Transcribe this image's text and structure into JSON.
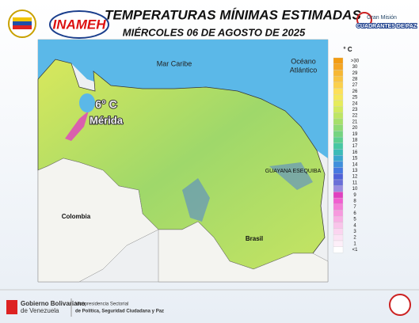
{
  "header": {
    "logo": "INAMEH",
    "title": "TEMPERATURAS MÍNIMAS ESTIMADAS",
    "subtitle": "MIÉRCOLES 06 DE AGOSTO DE 2025",
    "badge_small": "Gran Misión",
    "badge": "CUADRANTES DE PAZ"
  },
  "map": {
    "labels": {
      "sea": "Mar Caribe",
      "ocean": "Océano",
      "ocean2": "Atlántico",
      "colombia": "Colombia",
      "brasil": "Brasil",
      "esequiba": "GUAYANA ESEQUIBA",
      "min_temp": "6° C",
      "min_city": "Mérida"
    }
  },
  "legend": {
    "unit": "° C",
    "items": [
      {
        "label": ">30",
        "color": "#f39c12"
      },
      {
        "label": "30",
        "color": "#f5a623"
      },
      {
        "label": "29",
        "color": "#f7b733"
      },
      {
        "label": "28",
        "color": "#f9c440"
      },
      {
        "label": "27",
        "color": "#fbd04c"
      },
      {
        "label": "26",
        "color": "#fde05a"
      },
      {
        "label": "25",
        "color": "#f5e85a"
      },
      {
        "label": "24",
        "color": "#e6ec5c"
      },
      {
        "label": "23",
        "color": "#d2ea5e"
      },
      {
        "label": "22",
        "color": "#bde663"
      },
      {
        "label": "21",
        "color": "#a6e06a"
      },
      {
        "label": "20",
        "color": "#8fdb74"
      },
      {
        "label": "19",
        "color": "#74d480"
      },
      {
        "label": "18",
        "color": "#5ccf90"
      },
      {
        "label": "17",
        "color": "#47c7a3"
      },
      {
        "label": "16",
        "color": "#3bbbb8"
      },
      {
        "label": "15",
        "color": "#3aa6cf"
      },
      {
        "label": "14",
        "color": "#3f8fdc"
      },
      {
        "label": "13",
        "color": "#4678e0"
      },
      {
        "label": "12",
        "color": "#4f62d8"
      },
      {
        "label": "11",
        "color": "#6a6fd8"
      },
      {
        "label": "10",
        "color": "#9a8ce0"
      },
      {
        "label": "9",
        "color": "#e040c0"
      },
      {
        "label": "8",
        "color": "#f05fd0"
      },
      {
        "label": "7",
        "color": "#f47fd8"
      },
      {
        "label": "6",
        "color": "#f69ade"
      },
      {
        "label": "5",
        "color": "#f8b0e4"
      },
      {
        "label": "4",
        "color": "#f9c4ea"
      },
      {
        "label": "3",
        "color": "#fbd5f0"
      },
      {
        "label": "2",
        "color": "#fce3f5"
      },
      {
        "label": "1",
        "color": "#fdeff9"
      },
      {
        "label": "<1",
        "color": "#ffffff"
      }
    ]
  },
  "footer": {
    "gov1": "Gobierno Bolivariano",
    "gov2": "de Venezuela",
    "vice1": "Vicepresidencia Sectorial",
    "vice2": "de Política, Seguridad Ciudadana y Paz"
  }
}
